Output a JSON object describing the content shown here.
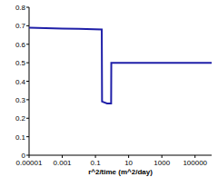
{
  "chart_data": {
    "type": "line",
    "x_label": "r^2/time (m^2/day)",
    "log": "x",
    "grid": false,
    "xlim": [
      1e-05,
      1000000
    ],
    "xticks": [
      1e-05,
      0.001,
      0.1,
      10,
      1000,
      100000
    ],
    "ylim": [
      0,
      0.8
    ],
    "yticks": [
      0,
      0.1,
      0.2,
      0.3,
      0.4,
      0.5,
      0.6,
      0.7,
      0.8
    ],
    "series": [
      {
        "color": "#1f1fa8",
        "x": [
          1e-05,
          0.001,
          0.01,
          0.24,
          0.25,
          0.5,
          0.88,
          0.9,
          1000000
        ],
        "values": [
          0.69,
          0.685,
          0.683,
          0.68,
          0.29,
          0.28,
          0.28,
          0.5,
          0.5
        ]
      }
    ]
  }
}
